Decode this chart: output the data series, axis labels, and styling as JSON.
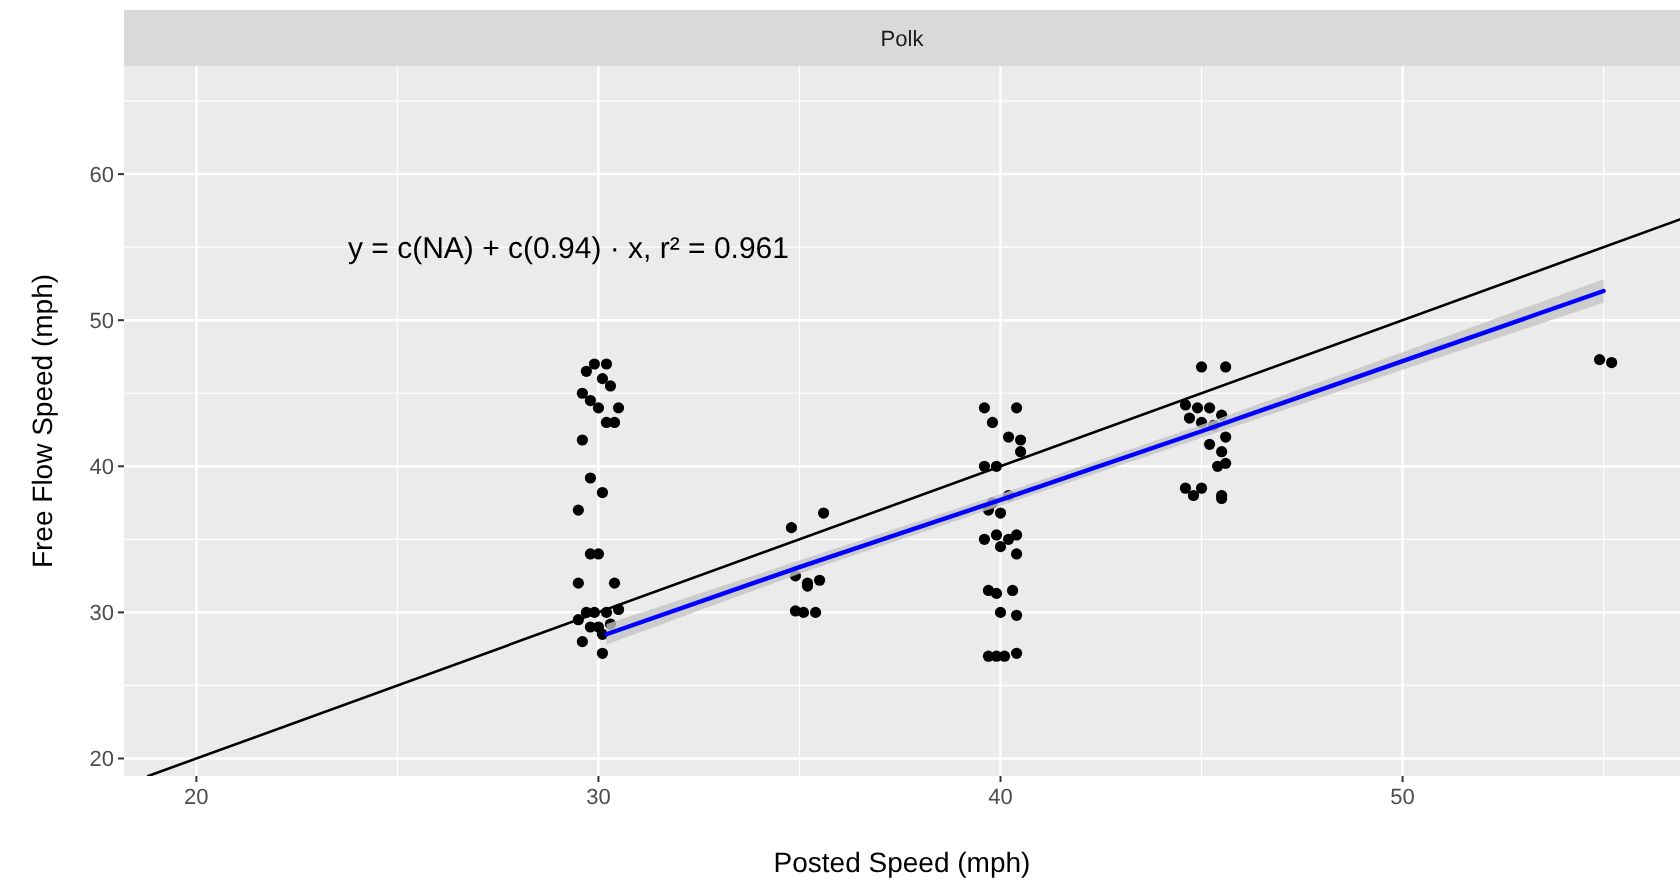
{
  "chart_data": {
    "type": "scatter",
    "title": "Polk",
    "xlabel": "Posted Speed (mph)",
    "ylabel": "Free Flow Speed (mph)",
    "annotations": [
      "y = c(NA) + c(0.94) · x,  r² = 0.961"
    ],
    "xlim": [
      18.2,
      56.9
    ],
    "ylim": [
      18.8,
      67.4
    ],
    "xticks": [
      20,
      {
        "value": 25,
        "label": null
      },
      30,
      {
        "value": 35,
        "label": null
      },
      40,
      {
        "value": 45,
        "label": null
      },
      50,
      {
        "value": 55,
        "label": null
      }
    ],
    "yticks": [
      20,
      {
        "value": 25,
        "label": null
      },
      30,
      {
        "value": 35,
        "label": null
      },
      40,
      {
        "value": 45,
        "label": null
      },
      50,
      {
        "value": 55,
        "label": null
      },
      60,
      {
        "value": 65,
        "label": null
      }
    ],
    "grid": true,
    "series": [
      {
        "type": "line",
        "color": "#000000",
        "x": [
          18.8,
          56.9
        ],
        "values": [
          18.8,
          56.9
        ]
      },
      {
        "color": "#000000",
        "marker": "circle",
        "x": [
          29.9,
          30.2,
          29.7,
          30.1,
          29.6,
          29.8,
          30.3,
          30.0,
          30.5,
          30.4,
          30.2,
          29.6,
          29.8,
          30.1,
          29.5,
          29.8,
          30.0,
          29.5,
          30.4,
          29.7,
          29.9,
          30.2,
          30.5,
          29.5,
          29.8,
          30.0,
          30.3,
          29.6,
          30.1,
          30.1,
          34.8,
          35.6,
          34.9,
          35.2,
          35.5,
          34.9,
          35.1,
          35.4,
          35.2,
          39.6,
          40.4,
          39.8,
          40.2,
          40.5,
          40.5,
          39.6,
          39.9,
          40.2,
          39.8,
          39.7,
          40.0,
          39.6,
          39.9,
          40.2,
          40.4,
          40.0,
          40.4,
          39.7,
          39.9,
          40.3,
          40.0,
          40.4,
          39.7,
          39.9,
          40.1,
          40.4,
          45.0,
          45.6,
          44.6,
          44.9,
          45.2,
          45.5,
          44.7,
          45.0,
          45.3,
          45.6,
          45.2,
          45.5,
          45.4,
          45.6,
          44.6,
          45.0,
          45.5,
          44.8,
          45.5,
          54.9,
          55.2
        ],
        "values": [
          47,
          47,
          46.5,
          46,
          45,
          44.5,
          45.5,
          44,
          44,
          43,
          43,
          41.8,
          39.2,
          38.2,
          37,
          34,
          34,
          32,
          32,
          30,
          30,
          30,
          30.2,
          29.5,
          29,
          29,
          29.2,
          28,
          28.5,
          27.2,
          35.8,
          36.8,
          32.5,
          32,
          32.2,
          30.1,
          30,
          30,
          31.8,
          44,
          44,
          43,
          42,
          41.8,
          41,
          40,
          40,
          38,
          37.5,
          37,
          36.8,
          35,
          35.3,
          35,
          35.3,
          34.5,
          34,
          31.5,
          31.3,
          31.5,
          30,
          29.8,
          27,
          27,
          27,
          27.2,
          46.8,
          46.8,
          44.2,
          44,
          44,
          43.5,
          43.3,
          43,
          42.8,
          42,
          41.5,
          41,
          40,
          40.2,
          38.5,
          38.5,
          38,
          38,
          37.8,
          47.3,
          47.1
        ]
      },
      {
        "type": "line",
        "color": "#0000ff",
        "x": [
          30.2,
          35,
          40,
          45,
          50,
          55
        ],
        "values": [
          28.5,
          33.1,
          37.7,
          42.4,
          47.2,
          52
        ],
        "lower": [
          27.8,
          32.65,
          37.3,
          41.95,
          46.6,
          51.2
        ],
        "upper": [
          29.2,
          33.55,
          38.1,
          42.85,
          47.8,
          52.8
        ]
      }
    ]
  }
}
